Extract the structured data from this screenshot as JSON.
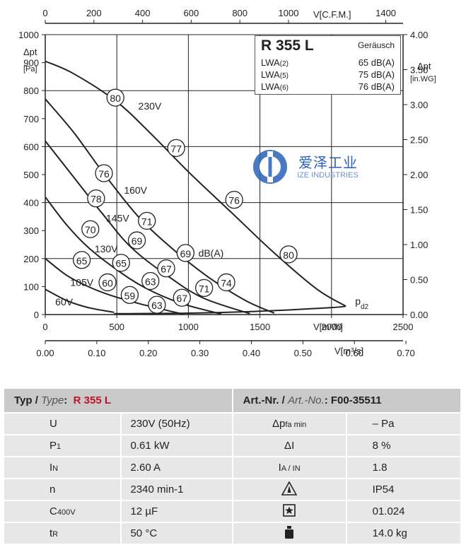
{
  "chart_data": {
    "type": "line",
    "x_bottom": {
      "label": "V[m³/h]",
      "ticks": [
        0,
        500,
        1000,
        1500,
        2000,
        2500
      ],
      "range": [
        0,
        2500
      ]
    },
    "x_bottom2": {
      "label": "V[m³/s]",
      "ticks": [
        "0.00",
        "0.10",
        "0.20",
        "0.30",
        "0.40",
        "0.50",
        "0.60",
        "0.70"
      ],
      "range": [
        0,
        0.6944
      ]
    },
    "x_top": {
      "label": "V[C.F.M.]",
      "ticks": [
        0,
        200,
        400,
        600,
        800,
        1000,
        1400
      ],
      "range": [
        0,
        1471
      ]
    },
    "y_left": {
      "label": "Δpt",
      "unit": "[Pa]",
      "ticks": [
        0,
        100,
        200,
        300,
        400,
        500,
        600,
        700,
        800,
        900,
        1000
      ],
      "range": [
        0,
        1000
      ]
    },
    "y_right": {
      "label": "Δpt",
      "unit": "[in.WG]",
      "ticks": [
        "0.00",
        "0.50",
        "1.00",
        "1.50",
        "2.00",
        "2.50",
        "3.00",
        "3.50",
        "4.00"
      ],
      "range": [
        0,
        4.0
      ]
    },
    "grid": true,
    "series": [
      {
        "name": "230V",
        "points": [
          [
            0,
            905
          ],
          [
            200,
            860
          ],
          [
            500,
            760
          ],
          [
            750,
            640
          ],
          [
            1000,
            510
          ],
          [
            1300,
            365
          ],
          [
            1600,
            220
          ],
          [
            1900,
            90
          ],
          [
            2100,
            30
          ]
        ]
      },
      {
        "name": "160V",
        "points": [
          [
            0,
            770
          ],
          [
            200,
            650
          ],
          [
            400,
            510
          ],
          [
            650,
            350
          ],
          [
            900,
            230
          ],
          [
            1150,
            130
          ],
          [
            1400,
            50
          ],
          [
            1600,
            5
          ]
        ]
      },
      {
        "name": "145V",
        "points": [
          [
            0,
            620
          ],
          [
            200,
            490
          ],
          [
            400,
            360
          ],
          [
            600,
            240
          ],
          [
            850,
            140
          ],
          [
            1100,
            60
          ],
          [
            1430,
            3
          ]
        ]
      },
      {
        "name": "130V",
        "points": [
          [
            0,
            420
          ],
          [
            150,
            320
          ],
          [
            300,
            240
          ],
          [
            500,
            160
          ],
          [
            700,
            95
          ],
          [
            950,
            40
          ],
          [
            1230,
            2
          ]
        ]
      },
      {
        "name": "105V",
        "points": [
          [
            0,
            200
          ],
          [
            150,
            140
          ],
          [
            300,
            100
          ],
          [
            450,
            70
          ],
          [
            650,
            40
          ],
          [
            850,
            15
          ],
          [
            970,
            1
          ]
        ]
      },
      {
        "name": "60V",
        "points": [
          [
            0,
            90
          ],
          [
            150,
            50
          ],
          [
            300,
            25
          ],
          [
            480,
            8
          ]
        ]
      },
      {
        "name": "",
        "points": [
          [
            480,
            3
          ],
          [
            1000,
            5
          ],
          [
            1500,
            12
          ],
          [
            2000,
            25
          ],
          [
            2100,
            30
          ]
        ]
      }
    ],
    "noise_markers": [
      {
        "value": "80",
        "x": 490,
        "y": 775
      },
      {
        "value": "77",
        "x": 915,
        "y": 595
      },
      {
        "value": "76",
        "x": 1320,
        "y": 410
      },
      {
        "value": "80",
        "x": 1700,
        "y": 215
      },
      {
        "value": "76",
        "x": 410,
        "y": 505
      },
      {
        "value": "71",
        "x": 710,
        "y": 335
      },
      {
        "value": "69",
        "x": 980,
        "y": 220
      },
      {
        "value": "74",
        "x": 1265,
        "y": 115
      },
      {
        "value": "78",
        "x": 355,
        "y": 415
      },
      {
        "value": "69",
        "x": 640,
        "y": 265
      },
      {
        "value": "67",
        "x": 845,
        "y": 165
      },
      {
        "value": "71",
        "x": 1110,
        "y": 95
      },
      {
        "value": "70",
        "x": 315,
        "y": 305
      },
      {
        "value": "65",
        "x": 530,
        "y": 185
      },
      {
        "value": "63",
        "x": 735,
        "y": 120
      },
      {
        "value": "67",
        "x": 955,
        "y": 60
      },
      {
        "value": "65",
        "x": 255,
        "y": 195
      },
      {
        "value": "60",
        "x": 435,
        "y": 115
      },
      {
        "value": "59",
        "x": 590,
        "y": 70
      },
      {
        "value": "63",
        "x": 780,
        "y": 35
      }
    ],
    "annotations": [
      {
        "text": "230V",
        "x": 650,
        "y": 745
      },
      {
        "text": "160V",
        "x": 550,
        "y": 445
      },
      {
        "text": "145V",
        "x": 425,
        "y": 345
      },
      {
        "text": "130V",
        "x": 345,
        "y": 235
      },
      {
        "text": "105V",
        "x": 175,
        "y": 115
      },
      {
        "text": "60V",
        "x": 70,
        "y": 45
      },
      {
        "text": "dB(A)",
        "x": 1070,
        "y": 220
      },
      {
        "text": "pd2",
        "x": 2165,
        "y": 30
      }
    ]
  },
  "info_box": {
    "model": "R 355 L",
    "noise_label": "Geräusch",
    "rows": [
      {
        "key": "LWA",
        "sub": "(2)",
        "value": "65 dB(A)"
      },
      {
        "key": "LWA",
        "sub": "(5)",
        "value": "75 dB(A)"
      },
      {
        "key": "LWA",
        "sub": "(6)",
        "value": "76 dB(A)"
      }
    ]
  },
  "watermark": {
    "cn": "爱泽工业",
    "en": "IZE INDUSTRIES"
  },
  "spec_table": {
    "type_label": "Typ / ",
    "type_label_en": "Type",
    "type_colon": ":",
    "type_value": "R 355 L",
    "art_label": "Art.-Nr. / ",
    "art_label_en": "Art.-No.",
    "art_colon": ":",
    "art_value": "F00-35511",
    "rows": [
      {
        "k1": "U",
        "k1sub": "",
        "v1": "230V (50Hz)",
        "k2": "Δp",
        "k2sub": "fa min",
        "k2icon": "",
        "v2": "– Pa"
      },
      {
        "k1": "P",
        "k1sub": "1",
        "v1": "0.61 kW",
        "k2": "ΔI",
        "k2sub": "",
        "k2icon": "",
        "v2": "8 %"
      },
      {
        "k1": "I",
        "k1sub": "N",
        "v1": "2.60 A",
        "k2": "I",
        "k2sub": "A / IN",
        "k2icon": "",
        "v2": "1.8"
      },
      {
        "k1": "n",
        "k1sub": "",
        "v1": "2340 min-1",
        "k2": "",
        "k2sub": "",
        "k2icon": "warning-icon",
        "v2": "IP54"
      },
      {
        "k1": "C",
        "k1sub": "400V",
        "v1": "12 µF",
        "k2": "",
        "k2sub": "",
        "k2icon": "star-box-icon",
        "v2": "01.024"
      },
      {
        "k1": "t",
        "k1sub": "R",
        "v1": "50 °C",
        "k2": "",
        "k2sub": "",
        "k2icon": "weight-icon",
        "v2": "14.0 kg"
      }
    ]
  }
}
